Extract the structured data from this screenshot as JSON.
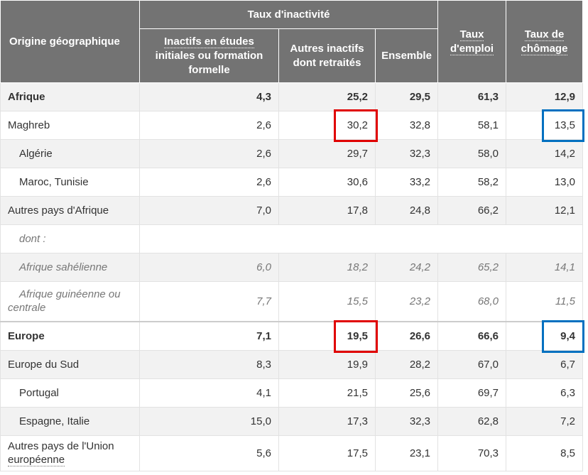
{
  "header": {
    "origin": "Origine géographique",
    "group": "Taux d'inactivité",
    "col1_l1": "Inactifs en études",
    "col1_l2": "initiales ou formation",
    "col1_l3": "formelle",
    "col2_l1": "Autres inactifs",
    "col2_l2": "dont retraités",
    "col3": "Ensemble",
    "col4_l1": "Taux",
    "col4_l2": "d'emploi",
    "col5_l1": "Taux de",
    "col5_l2": "chômage"
  },
  "rows": [
    {
      "label": "Afrique",
      "v1": "4,3",
      "v2": "25,2",
      "v3": "29,5",
      "v4": "61,3",
      "v5": "12,9"
    },
    {
      "label": "Maghreb",
      "v1": "2,6",
      "v2": "30,2",
      "v3": "32,8",
      "v4": "58,1",
      "v5": "13,5"
    },
    {
      "label": "Algérie",
      "v1": "2,6",
      "v2": "29,7",
      "v3": "32,3",
      "v4": "58,0",
      "v5": "14,2"
    },
    {
      "label": "Maroc, Tunisie",
      "v1": "2,6",
      "v2": "30,6",
      "v3": "33,2",
      "v4": "58,2",
      "v5": "13,0"
    },
    {
      "label": "Autres pays d'Afrique",
      "v1": "7,0",
      "v2": "17,8",
      "v3": "24,8",
      "v4": "66,2",
      "v5": "12,1"
    },
    {
      "label": "dont :"
    },
    {
      "label": "Afrique sahélienne",
      "v1": "6,0",
      "v2": "18,2",
      "v3": "24,2",
      "v4": "65,2",
      "v5": "14,1"
    },
    {
      "label_l1": "Afrique guinéenne ou",
      "label_l2": "centrale",
      "v1": "7,7",
      "v2": "15,5",
      "v3": "23,2",
      "v4": "68,0",
      "v5": "11,5"
    },
    {
      "label": "Europe",
      "v1": "7,1",
      "v2": "19,5",
      "v3": "26,6",
      "v4": "66,6",
      "v5": "9,4"
    },
    {
      "label": "Europe du Sud",
      "v1": "8,3",
      "v2": "19,9",
      "v3": "28,2",
      "v4": "67,0",
      "v5": "6,7"
    },
    {
      "label": "Portugal",
      "v1": "4,1",
      "v2": "21,5",
      "v3": "25,6",
      "v4": "69,7",
      "v5": "6,3"
    },
    {
      "label": "Espagne, Italie",
      "v1": "15,0",
      "v2": "17,3",
      "v3": "32,3",
      "v4": "62,8",
      "v5": "7,2"
    },
    {
      "label_l1": "Autres pays de l'Union",
      "label_l2": "européenne",
      "v1": "5,6",
      "v2": "17,5",
      "v3": "23,1",
      "v4": "70,3",
      "v5": "8,5"
    }
  ],
  "colors": {
    "header_bg": "#737373",
    "highlight_red": "#e00000",
    "highlight_blue": "#0070c0"
  }
}
